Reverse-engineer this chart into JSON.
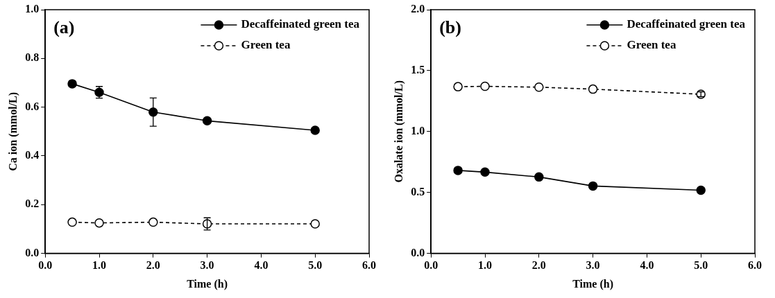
{
  "chart_data": [
    {
      "type": "line",
      "annotations": [
        "(a)"
      ],
      "xlabel": "Time (h)",
      "ylabel": "Ca ion (mmol/L)",
      "x": [
        0.5,
        1,
        2,
        3,
        5
      ],
      "xlim": [
        0,
        6
      ],
      "xticks": [
        {
          "value": 0,
          "label": "0.0"
        },
        {
          "value": 1,
          "label": "1.0"
        },
        {
          "value": 2,
          "label": "2.0"
        },
        {
          "value": 3,
          "label": "3.0"
        },
        {
          "value": 4,
          "label": "4.0"
        },
        {
          "value": 5,
          "label": "5.0"
        },
        {
          "value": 6,
          "label": "6.0"
        }
      ],
      "ylim": [
        0,
        1
      ],
      "yticks": [
        {
          "value": 0,
          "label": "0.0"
        },
        {
          "value": 0.2,
          "label": "0.2"
        },
        {
          "value": 0.4,
          "label": "0.4"
        },
        {
          "value": 0.6,
          "label": "0.6"
        },
        {
          "value": 0.8,
          "label": "0.8"
        },
        {
          "value": 1,
          "label": "1.0"
        }
      ],
      "grid": false,
      "legend": "top right",
      "marker": "circle",
      "series": [
        {
          "name": "Decaffeinated green tea",
          "color": "#000000",
          "line_style": "solid",
          "values": [
            0.696,
            0.661,
            0.58,
            0.544,
            0.505
          ],
          "errors": [
            0.012,
            0.024,
            0.058,
            null,
            null
          ]
        },
        {
          "name": "Green tea",
          "color": "#000000",
          "line_style": "dashed",
          "values": [
            0.128,
            0.125,
            0.128,
            0.121,
            0.121
          ],
          "errors": [
            null,
            null,
            null,
            0.025,
            null
          ]
        }
      ]
    },
    {
      "type": "line",
      "annotations": [
        "(b)"
      ],
      "xlabel": "Time (h)",
      "ylabel": "Oxalate ion (mmol/L)",
      "x": [
        0.5,
        1,
        2,
        3,
        5
      ],
      "xlim": [
        0,
        6
      ],
      "xticks": [
        {
          "value": 0,
          "label": "0.0"
        },
        {
          "value": 1,
          "label": "1.0"
        },
        {
          "value": 2,
          "label": "2.0"
        },
        {
          "value": 3,
          "label": "3.0"
        },
        {
          "value": 4,
          "label": "4.0"
        },
        {
          "value": 5,
          "label": "5.0"
        },
        {
          "value": 6,
          "label": "6.0"
        }
      ],
      "ylim": [
        0,
        2
      ],
      "yticks": [
        {
          "value": 0,
          "label": "0.0"
        },
        {
          "value": 0.5,
          "label": "0.5"
        },
        {
          "value": 1,
          "label": "1.0"
        },
        {
          "value": 1.5,
          "label": "1.5"
        },
        {
          "value": 2,
          "label": "2.0"
        }
      ],
      "grid": false,
      "legend": "top right",
      "marker": "circle",
      "series": [
        {
          "name": "Decaffeinated green tea",
          "color": "#000000",
          "line_style": "solid",
          "values": [
            0.681,
            0.667,
            0.627,
            0.553,
            0.518
          ],
          "errors": [
            null,
            null,
            null,
            null,
            0.02
          ]
        },
        {
          "name": "Green tea",
          "color": "#000000",
          "line_style": "dashed",
          "values": [
            1.368,
            1.371,
            1.364,
            1.348,
            1.306
          ],
          "errors": [
            null,
            null,
            null,
            null,
            0.02
          ]
        }
      ]
    }
  ]
}
